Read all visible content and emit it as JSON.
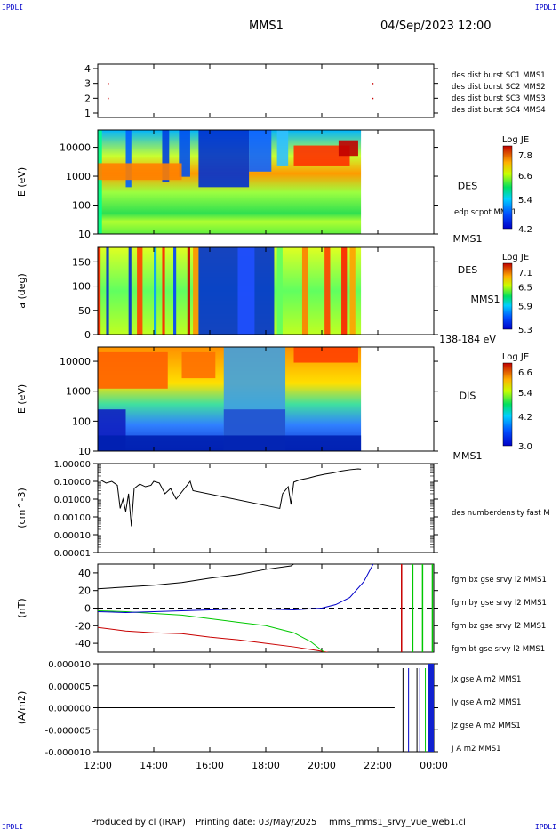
{
  "header": {
    "corner_left_top": "IPDLI",
    "corner_right_top": "IPDLI",
    "spacecraft": "MMS1",
    "datetime": "04/Sep/2023 12:00"
  },
  "footer": {
    "produced_by": "Produced by cl (IRAP)",
    "printing_date": "Printing date: 03/May/2025",
    "product": "mms_mms1_srvy_vue_web1.cl",
    "corner_left_bottom": "IPDLI",
    "corner_right_bottom": "IPDLI"
  },
  "time_axis": {
    "ticks": [
      "12:00",
      "14:00",
      "16:00",
      "18:00",
      "20:00",
      "22:00",
      "00:00"
    ],
    "tick_hours": [
      12,
      14,
      16,
      18,
      20,
      22,
      24
    ],
    "range_hours": [
      12,
      24
    ]
  },
  "chart_data": [
    {
      "type": "scatter",
      "panel": "burst",
      "yticks": [
        "1",
        "2",
        "3",
        "4"
      ],
      "ylim": [
        0.7,
        4.3
      ],
      "legend": [
        {
          "label": "des dist burst SC1 MMS1",
          "color": "#0000c8"
        },
        {
          "label": "des dist burst SC2 MMS2",
          "color": "#c800c8"
        },
        {
          "label": "des dist burst SC3 MMS3",
          "color": "#c80000"
        },
        {
          "label": "des dist burst SC4 MMS4",
          "color": "#00c800"
        }
      ],
      "points": [
        {
          "x": 12.35,
          "y": 3,
          "color": "#c80000"
        },
        {
          "x": 12.35,
          "y": 2,
          "color": "#c80000"
        },
        {
          "x": 21.8,
          "y": 3,
          "color": "#c80000"
        },
        {
          "x": 21.8,
          "y": 2,
          "color": "#c80000"
        }
      ]
    },
    {
      "type": "heatmap",
      "panel": "des-energy",
      "ylabel": "E (eV)",
      "log_y": true,
      "yticks": [
        "10",
        "100",
        "1000",
        "10000"
      ],
      "ylim": [
        10,
        40000
      ],
      "x_end_hours": 21.4,
      "right_label": "DES",
      "right_sublabel": "edp scpot MMS1",
      "right_bottom_label": "MMS1",
      "colorbar_title": "Log JE",
      "colorbar_ticks": [
        "7.8",
        "6.6",
        "5.4",
        "4.2"
      ],
      "colorbar_range": [
        4.2,
        8.0
      ]
    },
    {
      "type": "heatmap",
      "panel": "des-pitch",
      "ylabel": "a (deg)",
      "yticks": [
        "0",
        "50",
        "100",
        "150"
      ],
      "ylim": [
        0,
        180
      ],
      "x_end_hours": 21.4,
      "right_label": "DES",
      "right_sublabel": "MMS1",
      "right_bottom_label": "138-184 eV",
      "colorbar_title": "Log JE",
      "colorbar_ticks": [
        "7.1",
        "6.5",
        "5.9",
        "5.3"
      ],
      "colorbar_range": [
        5.3,
        7.3
      ]
    },
    {
      "type": "heatmap",
      "panel": "dis-energy",
      "ylabel": "E (eV)",
      "log_y": true,
      "yticks": [
        "10",
        "100",
        "1000",
        "10000"
      ],
      "ylim": [
        10,
        30000
      ],
      "x_end_hours": 21.4,
      "right_label": "DIS",
      "right_bottom_label": "MMS1",
      "colorbar_title": "Log JE",
      "colorbar_ticks": [
        "6.6",
        "5.4",
        "4.2",
        "3.0"
      ],
      "colorbar_range": [
        3.0,
        7.0
      ]
    },
    {
      "type": "line",
      "panel": "density",
      "ylabel": "(cm^-3)",
      "log_y": true,
      "yticks": [
        "1.00000",
        "0.10000",
        "0.01000",
        "0.00100",
        "0.00010",
        "0.00001"
      ],
      "ylim": [
        1e-05,
        1.0
      ],
      "series": [
        {
          "name": "des numberdensity fast M",
          "color": "#000000",
          "points": [
            [
              12.1,
              0.12
            ],
            [
              12.3,
              0.08
            ],
            [
              12.5,
              0.1
            ],
            [
              12.7,
              0.06
            ],
            [
              12.8,
              0.003
            ],
            [
              12.9,
              0.01
            ],
            [
              13.0,
              0.002
            ],
            [
              13.1,
              0.02
            ],
            [
              13.2,
              0.0003
            ],
            [
              13.3,
              0.04
            ],
            [
              13.5,
              0.07
            ],
            [
              13.7,
              0.05
            ],
            [
              13.9,
              0.06
            ],
            [
              14.0,
              0.1
            ],
            [
              14.2,
              0.08
            ],
            [
              14.4,
              0.02
            ],
            [
              14.6,
              0.04
            ],
            [
              14.8,
              0.01
            ],
            [
              15.3,
              0.1
            ],
            [
              15.4,
              0.03
            ],
            [
              18.5,
              0.003
            ],
            [
              18.6,
              0.02
            ],
            [
              18.8,
              0.05
            ],
            [
              18.9,
              0.005
            ],
            [
              19.0,
              0.09
            ],
            [
              19.2,
              0.12
            ],
            [
              19.5,
              0.15
            ],
            [
              19.8,
              0.2
            ],
            [
              20.1,
              0.25
            ],
            [
              20.4,
              0.3
            ],
            [
              20.7,
              0.38
            ],
            [
              21.0,
              0.45
            ],
            [
              21.3,
              0.5
            ],
            [
              21.4,
              0.48
            ]
          ]
        }
      ]
    },
    {
      "type": "line",
      "panel": "magnetic-field",
      "ylabel": "(nT)",
      "yticks": [
        "40",
        "20",
        "0",
        "-20",
        "-40"
      ],
      "ylim": [
        -50,
        50
      ],
      "series": [
        {
          "name": "fgm bx gse srvy l2 MMS1",
          "color": "#c80000",
          "points": [
            [
              12.0,
              -22
            ],
            [
              13.0,
              -26
            ],
            [
              14.0,
              -28
            ],
            [
              15.0,
              -29
            ],
            [
              16.0,
              -33
            ],
            [
              17.0,
              -36
            ],
            [
              18.0,
              -40
            ],
            [
              19.0,
              -44
            ],
            [
              20.0,
              -49
            ],
            [
              20.5,
              -52
            ]
          ]
        },
        {
          "name": "fgm by gse srvy l2 MMS1",
          "color": "#00c800",
          "points": [
            [
              12.0,
              -3
            ],
            [
              13.0,
              -4
            ],
            [
              14.0,
              -6
            ],
            [
              15.0,
              -8
            ],
            [
              16.0,
              -12
            ],
            [
              17.0,
              -16
            ],
            [
              18.0,
              -20
            ],
            [
              19.0,
              -28
            ],
            [
              19.6,
              -38
            ],
            [
              20.0,
              -48
            ],
            [
              20.3,
              -55
            ]
          ]
        },
        {
          "name": "fgm bz gse srvy l2 MMS1",
          "color": "#0000c8",
          "points": [
            [
              12.0,
              -4
            ],
            [
              13.0,
              -5
            ],
            [
              14.0,
              -4
            ],
            [
              15.0,
              -3
            ],
            [
              16.0,
              -2
            ],
            [
              17.0,
              -1
            ],
            [
              18.0,
              -1
            ],
            [
              19.0,
              -2
            ],
            [
              20.0,
              0
            ],
            [
              20.5,
              4
            ],
            [
              21.0,
              12
            ],
            [
              21.5,
              30
            ],
            [
              21.8,
              48
            ],
            [
              22.0,
              60
            ]
          ]
        },
        {
          "name": "fgm bt gse srvy l2 MMS1",
          "color": "#000000",
          "points": [
            [
              12.0,
              22
            ],
            [
              13.0,
              24
            ],
            [
              14.0,
              26
            ],
            [
              15.0,
              29
            ],
            [
              16.0,
              34
            ],
            [
              17.0,
              38
            ],
            [
              18.0,
              44
            ],
            [
              18.9,
              48
            ],
            [
              19.0,
              50
            ]
          ]
        }
      ],
      "dashed_zero": true
    },
    {
      "type": "line",
      "panel": "current-density",
      "ylabel": "(A/m2)",
      "yticks": [
        "0.000010",
        "0.000005",
        "0.000000",
        "-0.000005",
        "-0.000010"
      ],
      "ylim": [
        -1e-05,
        1e-05
      ],
      "series": [
        {
          "name": "Jx gse A m2 MMS1",
          "color": "#c80000"
        },
        {
          "name": "Jy gse A m2 MMS1",
          "color": "#00c800"
        },
        {
          "name": "Jz gse A m2 MMS1",
          "color": "#0000c8"
        },
        {
          "name": "J A m2 MMS1",
          "color": "#000000"
        }
      ]
    }
  ]
}
